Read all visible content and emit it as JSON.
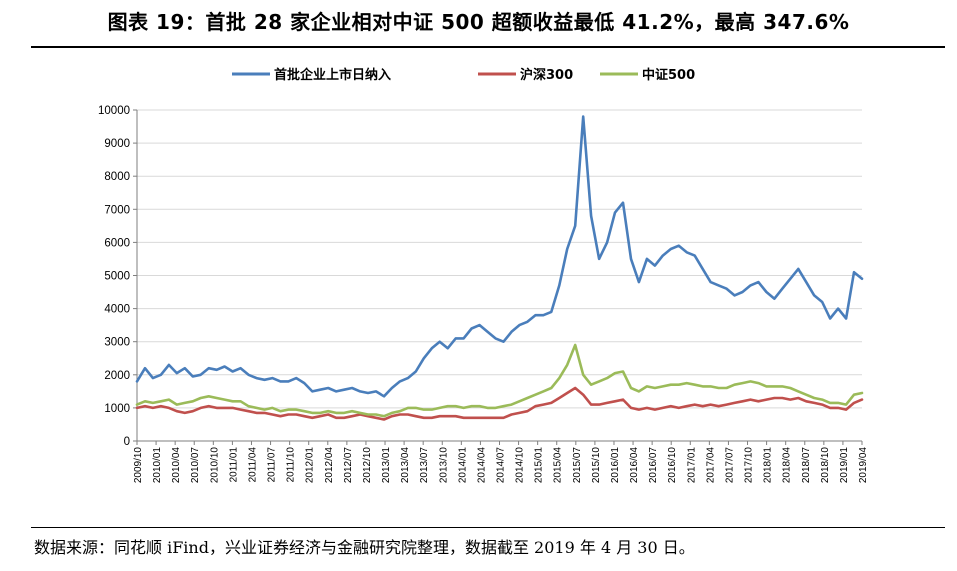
{
  "chart_data": {
    "type": "line",
    "title": "图表 19：首批 28 家企业相对中证 500 超额收益最低 41.2%，最高 347.6%",
    "source": "数据来源：同花顺 iFind，兴业证券经济与金融研究院整理，数据截至 2019 年 4 月 30 日。",
    "ylim": [
      0,
      10000
    ],
    "yticks": [
      0,
      1000,
      2000,
      3000,
      4000,
      5000,
      6000,
      7000,
      8000,
      9000,
      10000
    ],
    "xticks": [
      "2009/10",
      "2010/01",
      "2010/04",
      "2010/07",
      "2010/10",
      "2011/01",
      "2011/04",
      "2011/07",
      "2011/10",
      "2012/01",
      "2012/04",
      "2012/07",
      "2012/10",
      "2013/01",
      "2013/04",
      "2013/07",
      "2013/10",
      "2014/01",
      "2014/04",
      "2014/07",
      "2014/10",
      "2015/01",
      "2015/04",
      "2015/07",
      "2015/10",
      "2016/01",
      "2016/04",
      "2016/07",
      "2016/10",
      "2017/01",
      "2017/04",
      "2017/07",
      "2017/10",
      "2018/01",
      "2018/04",
      "2018/07",
      "2018/10",
      "2019/01",
      "2019/04"
    ],
    "legend": [
      "首批企业上市日纳入",
      "沪深300",
      "中证500"
    ],
    "series": [
      {
        "name": "首批企业上市日纳入",
        "color": "#4a7ebb",
        "values": [
          1800,
          2200,
          1900,
          2000,
          2300,
          2050,
          2200,
          1950,
          2000,
          2200,
          2150,
          2250,
          2100,
          2200,
          2000,
          1900,
          1850,
          1900,
          1800,
          1800,
          1900,
          1750,
          1500,
          1550,
          1600,
          1500,
          1550,
          1600,
          1500,
          1450,
          1500,
          1350,
          1600,
          1800,
          1900,
          2100,
          2500,
          2800,
          3000,
          2800,
          3100,
          3100,
          3400,
          3500,
          3300,
          3100,
          3000,
          3300,
          3500,
          3600,
          3800,
          3800,
          3900,
          4700,
          5800,
          6500,
          9800,
          6800,
          5500,
          6000,
          6900,
          7200,
          5500,
          4800,
          5500,
          5300,
          5600,
          5800,
          5900,
          5700,
          5600,
          5200,
          4800,
          4700,
          4600,
          4400,
          4500,
          4700,
          4800,
          4500,
          4300,
          4600,
          4900,
          5200,
          4800,
          4400,
          4200,
          3700,
          4000,
          3700,
          5100,
          4900
        ]
      },
      {
        "name": "沪深300",
        "color": "#c0504d",
        "values": [
          1000,
          1050,
          1000,
          1050,
          1000,
          900,
          850,
          900,
          1000,
          1050,
          1000,
          1000,
          1000,
          950,
          900,
          850,
          850,
          800,
          750,
          800,
          800,
          750,
          700,
          750,
          800,
          700,
          700,
          750,
          800,
          750,
          700,
          650,
          750,
          800,
          800,
          750,
          700,
          700,
          750,
          750,
          750,
          700,
          700,
          700,
          700,
          700,
          700,
          800,
          850,
          900,
          1050,
          1100,
          1150,
          1300,
          1450,
          1600,
          1400,
          1100,
          1100,
          1150,
          1200,
          1250,
          1000,
          950,
          1000,
          950,
          1000,
          1050,
          1000,
          1050,
          1100,
          1050,
          1100,
          1050,
          1100,
          1150,
          1200,
          1250,
          1200,
          1250,
          1300,
          1300,
          1250,
          1300,
          1200,
          1150,
          1100,
          1000,
          1000,
          950,
          1150,
          1250
        ]
      },
      {
        "name": "中证500",
        "color": "#9bbb59",
        "values": [
          1100,
          1200,
          1150,
          1200,
          1250,
          1100,
          1150,
          1200,
          1300,
          1350,
          1300,
          1250,
          1200,
          1200,
          1050,
          1000,
          950,
          1000,
          900,
          950,
          950,
          900,
          850,
          850,
          900,
          850,
          850,
          900,
          850,
          800,
          800,
          750,
          850,
          900,
          1000,
          1000,
          950,
          950,
          1000,
          1050,
          1050,
          1000,
          1050,
          1050,
          1000,
          1000,
          1050,
          1100,
          1200,
          1300,
          1400,
          1500,
          1600,
          1900,
          2300,
          2900,
          2000,
          1700,
          1800,
          1900,
          2050,
          2100,
          1600,
          1500,
          1650,
          1600,
          1650,
          1700,
          1700,
          1750,
          1700,
          1650,
          1650,
          1600,
          1600,
          1700,
          1750,
          1800,
          1750,
          1650,
          1650,
          1650,
          1600,
          1500,
          1400,
          1300,
          1250,
          1150,
          1150,
          1100,
          1400,
          1450
        ]
      }
    ]
  }
}
